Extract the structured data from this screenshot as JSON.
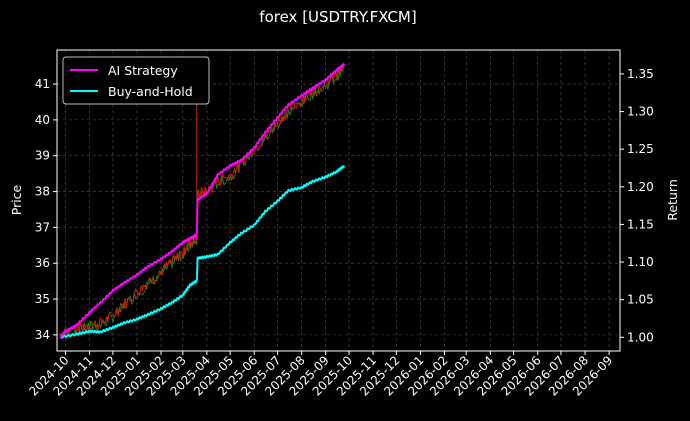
{
  "chart_data": {
    "type": "line",
    "title": "forex [USDTRY.FXCM]",
    "xlabel": "",
    "ylabel": "Price",
    "y2label": "Return",
    "grid": true,
    "legend": "top-left",
    "x_ticks": [
      "2024-10",
      "2024-11",
      "2024-12",
      "2025-01",
      "2025-02",
      "2025-03",
      "2025-04",
      "2025-05",
      "2025-06",
      "2025-07",
      "2025-08",
      "2025-09",
      "2025-10",
      "2025-11",
      "2025-12",
      "2026-01",
      "2026-02",
      "2026-03",
      "2026-04",
      "2026-05",
      "2026-06",
      "2026-07",
      "2026-08",
      "2026-09"
    ],
    "xlim": [
      "2024-09-20",
      "2026-09-15"
    ],
    "ylim": [
      33.55,
      41.95
    ],
    "y_ticks": [
      34,
      35,
      36,
      37,
      38,
      39,
      40,
      41
    ],
    "y2lim": [
      0.9818,
      1.3818
    ],
    "y2_ticks": [
      "1.00",
      "1.05",
      "1.10",
      "1.15",
      "1.20",
      "1.25",
      "1.30",
      "1.35"
    ],
    "series": [
      {
        "name": "AI Strategy",
        "axis": "right",
        "color": "#ff00ff",
        "points": [
          [
            "2024-09-24",
            1.0
          ],
          [
            "2024-10-01",
            1.008
          ],
          [
            "2024-10-15",
            1.016
          ],
          [
            "2024-11-01",
            1.033
          ],
          [
            "2024-11-15",
            1.046
          ],
          [
            "2024-12-01",
            1.062
          ],
          [
            "2024-12-15",
            1.072
          ],
          [
            "2025-01-01",
            1.083
          ],
          [
            "2025-01-15",
            1.094
          ],
          [
            "2025-02-01",
            1.104
          ],
          [
            "2025-02-15",
            1.114
          ],
          [
            "2025-03-01",
            1.126
          ],
          [
            "2025-03-10",
            1.131
          ],
          [
            "2025-03-19",
            1.136
          ],
          [
            "2025-03-20",
            1.183
          ],
          [
            "2025-04-01",
            1.191
          ],
          [
            "2025-04-15",
            1.216
          ],
          [
            "2025-05-01",
            1.228
          ],
          [
            "2025-05-15",
            1.235
          ],
          [
            "2025-06-01",
            1.252
          ],
          [
            "2025-06-15",
            1.272
          ],
          [
            "2025-07-01",
            1.292
          ],
          [
            "2025-07-15",
            1.309
          ],
          [
            "2025-08-01",
            1.321
          ],
          [
            "2025-08-15",
            1.331
          ],
          [
            "2025-09-01",
            1.342
          ],
          [
            "2025-09-15",
            1.355
          ],
          [
            "2025-09-25",
            1.363
          ]
        ]
      },
      {
        "name": "Buy-and-Hold",
        "axis": "right",
        "color": "#00ffff",
        "points": [
          [
            "2024-09-24",
            1.0
          ],
          [
            "2024-10-15",
            1.004
          ],
          [
            "2024-11-01",
            1.008
          ],
          [
            "2024-11-15",
            1.007
          ],
          [
            "2024-12-01",
            1.013
          ],
          [
            "2024-12-15",
            1.019
          ],
          [
            "2025-01-01",
            1.024
          ],
          [
            "2025-01-15",
            1.03
          ],
          [
            "2025-02-01",
            1.038
          ],
          [
            "2025-02-15",
            1.046
          ],
          [
            "2025-03-01",
            1.056
          ],
          [
            "2025-03-10",
            1.069
          ],
          [
            "2025-03-19",
            1.075
          ],
          [
            "2025-03-20",
            1.105
          ],
          [
            "2025-04-01",
            1.107
          ],
          [
            "2025-04-15",
            1.11
          ],
          [
            "2025-05-01",
            1.126
          ],
          [
            "2025-05-15",
            1.138
          ],
          [
            "2025-06-01",
            1.149
          ],
          [
            "2025-06-15",
            1.167
          ],
          [
            "2025-07-01",
            1.181
          ],
          [
            "2025-07-15",
            1.195
          ],
          [
            "2025-08-01",
            1.199
          ],
          [
            "2025-08-15",
            1.207
          ],
          [
            "2025-09-01",
            1.213
          ],
          [
            "2025-09-15",
            1.22
          ],
          [
            "2025-09-25",
            1.228
          ]
        ]
      },
      {
        "name": "USDTRY price",
        "axis": "left",
        "color": "#cc2200",
        "color2": "#1f7a1f",
        "points": [
          [
            "2024-09-24",
            34.05
          ],
          [
            "2024-10-15",
            34.18
          ],
          [
            "2024-11-01",
            34.28
          ],
          [
            "2024-11-15",
            34.32
          ],
          [
            "2024-12-01",
            34.55
          ],
          [
            "2024-12-15",
            34.85
          ],
          [
            "2025-01-01",
            35.2
          ],
          [
            "2025-01-15",
            35.45
          ],
          [
            "2025-02-01",
            35.75
          ],
          [
            "2025-02-15",
            36.05
          ],
          [
            "2025-03-01",
            36.3
          ],
          [
            "2025-03-10",
            36.55
          ],
          [
            "2025-03-19",
            36.78
          ],
          [
            "2025-03-20",
            37.95
          ],
          [
            "2025-04-01",
            38.0
          ],
          [
            "2025-04-15",
            38.3
          ],
          [
            "2025-05-01",
            38.45
          ],
          [
            "2025-05-15",
            38.8
          ],
          [
            "2025-06-01",
            39.2
          ],
          [
            "2025-06-15",
            39.5
          ],
          [
            "2025-07-01",
            39.95
          ],
          [
            "2025-07-15",
            40.25
          ],
          [
            "2025-08-01",
            40.55
          ],
          [
            "2025-08-15",
            40.8
          ],
          [
            "2025-09-01",
            41.0
          ],
          [
            "2025-09-15",
            41.25
          ],
          [
            "2025-09-25",
            41.5
          ]
        ],
        "spike": {
          "date": "2025-03-19",
          "high": 40.6,
          "low": 36.5
        }
      }
    ]
  }
}
